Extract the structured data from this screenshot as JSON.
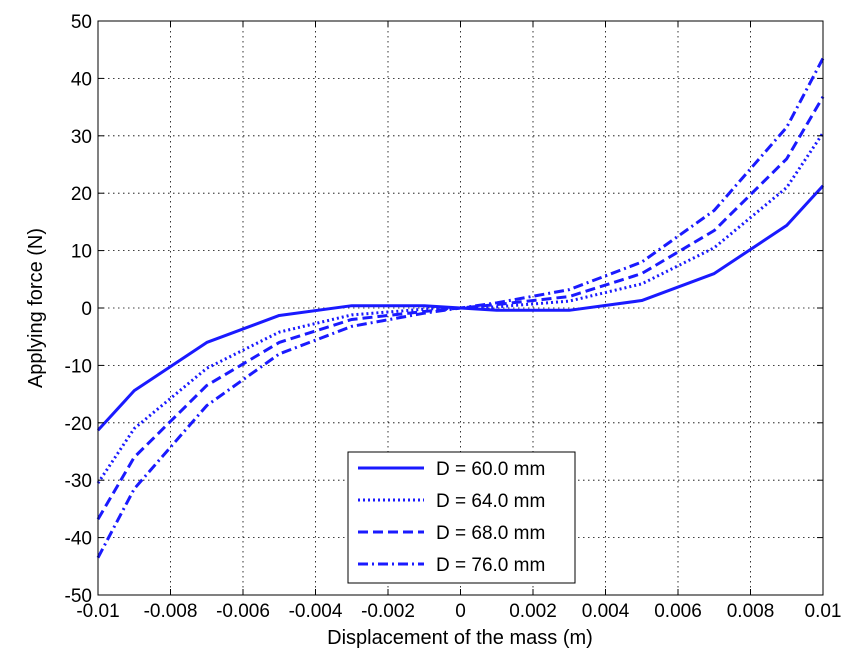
{
  "chart_data": {
    "type": "line",
    "title": "",
    "xlabel": "Displacement of the mass (m)",
    "ylabel": "Applying force (N)",
    "xlim": [
      -0.01,
      0.01
    ],
    "ylim": [
      -50,
      50
    ],
    "grid": true,
    "legend_position": "bottom-center",
    "line_color": "#1a1aff",
    "x_ticks": [
      -0.01,
      -0.008,
      -0.006,
      -0.004,
      -0.002,
      0,
      0.002,
      0.004,
      0.006,
      0.008,
      0.01
    ],
    "x_tick_labels": [
      "-0.01",
      "-0.008",
      "-0.006",
      "-0.004",
      "-0.002",
      "0",
      "0.002",
      "0.004",
      "0.006",
      "0.008",
      "0.01"
    ],
    "y_ticks": [
      -50,
      -40,
      -30,
      -20,
      -10,
      0,
      10,
      20,
      30,
      40,
      50
    ],
    "y_tick_labels": [
      "-50",
      "-40",
      "-30",
      "-20",
      "-10",
      "0",
      "10",
      "20",
      "30",
      "40",
      "50"
    ],
    "x": [
      -0.01,
      -0.009,
      -0.007,
      -0.005,
      -0.003,
      -0.001,
      0,
      0.001,
      0.003,
      0.005,
      0.007,
      0.009,
      0.01
    ],
    "series": [
      {
        "name": "D = 60.0 mm",
        "dash": "solid",
        "values": [
          -21.3,
          -14.4,
          -6.0,
          -1.3,
          0.4,
          0.4,
          0,
          -0.4,
          -0.4,
          1.3,
          6.0,
          14.4,
          21.3
        ]
      },
      {
        "name": "D = 64.0 mm",
        "dash": "dotted",
        "values": [
          -30.5,
          -21.0,
          -10.5,
          -4.2,
          -1.2,
          -0.2,
          0,
          0.2,
          1.2,
          4.2,
          10.5,
          21.0,
          30.5
        ]
      },
      {
        "name": "D = 68.0 mm",
        "dash": "dashed",
        "values": [
          -36.8,
          -26.0,
          -13.5,
          -6.0,
          -2.0,
          -0.6,
          0,
          0.6,
          2.0,
          6.0,
          13.5,
          26.0,
          36.8
        ]
      },
      {
        "name": "D = 76.0 mm",
        "dash": "dashdot",
        "values": [
          -43.5,
          -31.5,
          -17.0,
          -8.0,
          -3.2,
          -0.9,
          0,
          0.9,
          3.2,
          8.0,
          17.0,
          31.5,
          43.5
        ]
      }
    ]
  }
}
